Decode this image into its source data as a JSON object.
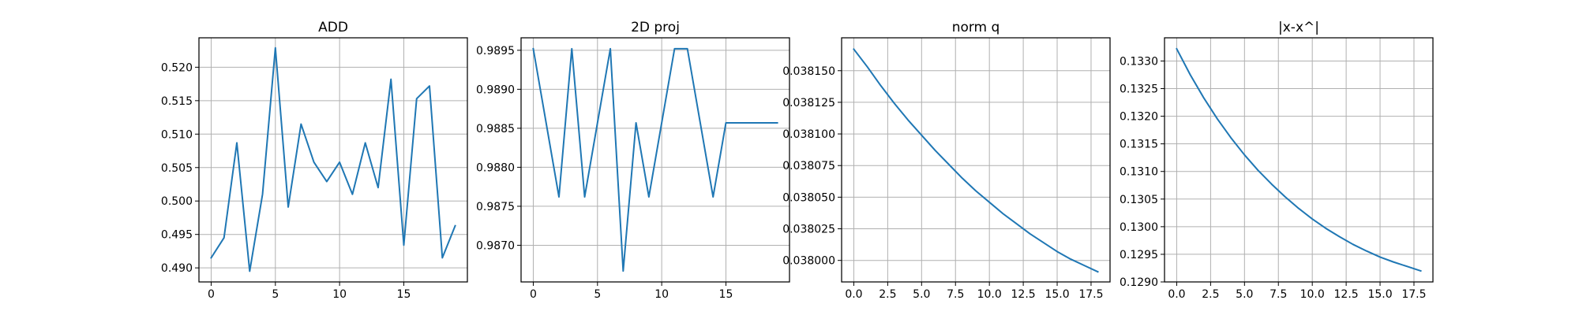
{
  "chart_data": [
    {
      "type": "line",
      "title": "ADD",
      "grid": true,
      "x": [
        0,
        1,
        2,
        3,
        4,
        5,
        6,
        7,
        8,
        9,
        10,
        11,
        12,
        13,
        14,
        15,
        16,
        17,
        18,
        19
      ],
      "series": [
        {
          "color": "#1f77b4",
          "values": [
            0.4915,
            0.4945,
            0.5087,
            0.4895,
            0.501,
            0.5229,
            0.4991,
            0.5115,
            0.5058,
            0.5029,
            0.5058,
            0.501,
            0.5087,
            0.502,
            0.5182,
            0.4934,
            0.5153,
            0.5172,
            0.4915,
            0.4963
          ]
        }
      ],
      "xlim": [
        -0.95,
        19.95
      ],
      "ylim": [
        0.4879,
        0.5244
      ],
      "xticks": [
        0,
        5,
        10,
        15
      ],
      "xtick_labels": [
        "0",
        "5",
        "10",
        "15"
      ],
      "yticks": [
        0.49,
        0.495,
        0.5,
        0.505,
        0.51,
        0.515,
        0.52
      ],
      "ytick_labels": [
        "0.490",
        "0.495",
        "0.500",
        "0.505",
        "0.510",
        "0.515",
        "0.520"
      ]
    },
    {
      "type": "line",
      "title": "2D proj",
      "grid": true,
      "x": [
        0,
        1,
        2,
        3,
        4,
        5,
        6,
        7,
        8,
        9,
        10,
        11,
        12,
        13,
        14,
        15,
        16,
        17,
        18,
        19
      ],
      "series": [
        {
          "color": "#1f77b4",
          "values": [
            0.98952,
            0.98857,
            0.98762,
            0.98952,
            0.98762,
            0.98857,
            0.98952,
            0.98667,
            0.98857,
            0.98762,
            0.98857,
            0.98952,
            0.98952,
            0.98857,
            0.98762,
            0.98857,
            0.98857,
            0.98857,
            0.98857,
            0.98857
          ]
        }
      ],
      "xlim": [
        -0.95,
        19.95
      ],
      "ylim": [
        0.98653,
        0.98966
      ],
      "xticks": [
        0,
        5,
        10,
        15
      ],
      "xtick_labels": [
        "0",
        "5",
        "10",
        "15"
      ],
      "yticks": [
        0.987,
        0.9875,
        0.988,
        0.9885,
        0.989,
        0.9895
      ],
      "ytick_labels": [
        "0.9870",
        "0.9875",
        "0.9880",
        "0.9885",
        "0.9890",
        "0.9895"
      ]
    },
    {
      "type": "line",
      "title": "norm q",
      "grid": true,
      "x": [
        0,
        1,
        2,
        3,
        4,
        5,
        6,
        7,
        8,
        9,
        10,
        11,
        12,
        13,
        14,
        15,
        16,
        17,
        18
      ],
      "series": [
        {
          "color": "#1f77b4",
          "values": [
            0.038167,
            0.038153,
            0.038138,
            0.038124,
            0.038111,
            0.038099,
            0.038087,
            0.038076,
            0.038065,
            0.038055,
            0.038046,
            0.038037,
            0.038029,
            0.038021,
            0.038014,
            0.038007,
            0.038001,
            0.037996,
            0.037991
          ]
        }
      ],
      "xlim": [
        -0.9,
        18.9
      ],
      "ylim": [
        0.037983,
        0.038176
      ],
      "xticks": [
        0.0,
        2.5,
        5.0,
        7.5,
        10.0,
        12.5,
        15.0,
        17.5
      ],
      "xtick_labels": [
        "0.0",
        "2.5",
        "5.0",
        "7.5",
        "10.0",
        "12.5",
        "15.0",
        "17.5"
      ],
      "yticks": [
        0.038,
        0.038025,
        0.03805,
        0.038075,
        0.0381,
        0.038125,
        0.03815
      ],
      "ytick_labels": [
        "0.038000",
        "0.038025",
        "0.038050",
        "0.038075",
        "0.038100",
        "0.038125",
        "0.038150"
      ]
    },
    {
      "type": "line",
      "title": "|x-x^|",
      "grid": true,
      "x": [
        0,
        1,
        2,
        3,
        4,
        5,
        6,
        7,
        8,
        9,
        10,
        11,
        12,
        13,
        14,
        15,
        16,
        17,
        18
      ],
      "series": [
        {
          "color": "#1f77b4",
          "values": [
            0.13322,
            0.13275,
            0.13233,
            0.13195,
            0.13161,
            0.1313,
            0.13102,
            0.13077,
            0.13054,
            0.13033,
            0.13014,
            0.12997,
            0.12982,
            0.12968,
            0.12956,
            0.12945,
            0.12936,
            0.12928,
            0.1292
          ]
        }
      ],
      "xlim": [
        -0.9,
        18.9
      ],
      "ylim": [
        0.129,
        0.13342
      ],
      "xticks": [
        0.0,
        2.5,
        5.0,
        7.5,
        10.0,
        12.5,
        15.0,
        17.5
      ],
      "xtick_labels": [
        "0.0",
        "2.5",
        "5.0",
        "7.5",
        "10.0",
        "12.5",
        "15.0",
        "17.5"
      ],
      "yticks": [
        0.129,
        0.1295,
        0.13,
        0.1305,
        0.131,
        0.1315,
        0.132,
        0.1325,
        0.133
      ],
      "ytick_labels": [
        "0.1290",
        "0.1295",
        "0.1300",
        "0.1305",
        "0.1310",
        "0.1315",
        "0.1320",
        "0.1325",
        "0.1330"
      ]
    }
  ]
}
